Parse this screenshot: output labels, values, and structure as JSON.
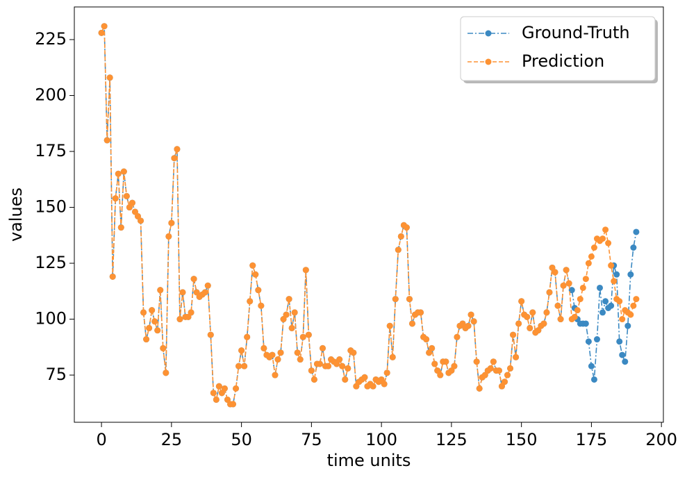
{
  "chart_data": {
    "type": "line",
    "xlabel": "time units",
    "ylabel": "values",
    "x": [
      0,
      1,
      2,
      3,
      4,
      5,
      6,
      7,
      8,
      9,
      10,
      11,
      12,
      13,
      14,
      15,
      16,
      17,
      18,
      19,
      20,
      21,
      22,
      23,
      24,
      25,
      26,
      27,
      28,
      29,
      30,
      31,
      32,
      33,
      34,
      35,
      36,
      37,
      38,
      39,
      40,
      41,
      42,
      43,
      44,
      45,
      46,
      47,
      48,
      49,
      50,
      51,
      52,
      53,
      54,
      55,
      56,
      57,
      58,
      59,
      60,
      61,
      62,
      63,
      64,
      65,
      66,
      67,
      68,
      69,
      70,
      71,
      72,
      73,
      74,
      75,
      76,
      77,
      78,
      79,
      80,
      81,
      82,
      83,
      84,
      85,
      86,
      87,
      88,
      89,
      90,
      91,
      92,
      93,
      94,
      95,
      96,
      97,
      98,
      99,
      100,
      101,
      102,
      103,
      104,
      105,
      106,
      107,
      108,
      109,
      110,
      111,
      112,
      113,
      114,
      115,
      116,
      117,
      118,
      119,
      120,
      121,
      122,
      123,
      124,
      125,
      126,
      127,
      128,
      129,
      130,
      131,
      132,
      133,
      134,
      135,
      136,
      137,
      138,
      139,
      140,
      141,
      142,
      143,
      144,
      145,
      146,
      147,
      148,
      149,
      150,
      151,
      152,
      153,
      154,
      155,
      156,
      157,
      158,
      159,
      160,
      161,
      162,
      163,
      164,
      165,
      166,
      167,
      168,
      169,
      170,
      171,
      172,
      173,
      174,
      175,
      176,
      177,
      178,
      179,
      180,
      181,
      182,
      183,
      184,
      185,
      186,
      187,
      188,
      189,
      190,
      191
    ],
    "series": [
      {
        "name": "Ground-Truth",
        "color": "#3b89c2",
        "linestyle": "-.",
        "values": [
          228,
          231,
          180,
          208,
          119,
          154,
          165,
          141,
          166,
          155,
          150,
          152,
          148,
          146,
          144,
          103,
          91,
          96,
          104,
          99,
          95,
          113,
          87,
          76,
          137,
          143,
          172,
          176,
          100,
          112,
          101,
          101,
          103,
          118,
          112,
          110,
          111,
          112,
          115,
          93,
          67,
          64,
          70,
          67,
          69,
          64,
          62,
          62,
          69,
          79,
          86,
          79,
          92,
          108,
          124,
          120,
          113,
          106,
          87,
          84,
          83,
          84,
          75,
          82,
          85,
          100,
          102,
          109,
          96,
          103,
          85,
          82,
          92,
          122,
          93,
          77,
          73,
          80,
          80,
          87,
          79,
          79,
          82,
          81,
          80,
          82,
          79,
          73,
          78,
          86,
          85,
          70,
          72,
          73,
          74,
          70,
          71,
          70,
          73,
          72,
          73,
          71,
          76,
          97,
          83,
          109,
          131,
          137,
          142,
          141,
          109,
          98,
          102,
          103,
          103,
          92,
          91,
          85,
          87,
          80,
          77,
          75,
          81,
          81,
          76,
          77,
          79,
          92,
          97,
          98,
          96,
          97,
          102,
          99,
          81,
          69,
          74,
          75,
          77,
          78,
          81,
          77,
          77,
          70,
          72,
          75,
          78,
          93,
          83,
          98,
          108,
          102,
          101,
          96,
          103,
          94,
          95,
          97,
          98,
          103,
          112,
          123,
          121,
          106,
          100,
          115,
          122,
          116,
          113,
          105,
          100,
          98,
          98,
          98,
          90,
          79,
          73,
          91,
          114,
          103,
          108,
          105,
          106,
          124,
          120,
          90,
          84,
          81,
          97,
          120,
          132,
          139
        ]
      },
      {
        "name": "Prediction",
        "color": "#fd9233",
        "linestyle": "--",
        "values": [
          228,
          231,
          180,
          208,
          119,
          154,
          165,
          141,
          166,
          155,
          150,
          152,
          148,
          146,
          144,
          103,
          91,
          96,
          104,
          99,
          95,
          113,
          87,
          76,
          137,
          143,
          172,
          176,
          100,
          112,
          101,
          101,
          103,
          118,
          112,
          110,
          111,
          112,
          115,
          93,
          67,
          64,
          70,
          67,
          69,
          64,
          62,
          62,
          69,
          79,
          86,
          79,
          92,
          108,
          124,
          120,
          113,
          106,
          87,
          84,
          83,
          84,
          75,
          82,
          85,
          100,
          102,
          109,
          96,
          103,
          85,
          82,
          92,
          122,
          93,
          77,
          73,
          80,
          80,
          87,
          79,
          79,
          82,
          81,
          80,
          82,
          79,
          73,
          78,
          86,
          85,
          70,
          72,
          73,
          74,
          70,
          71,
          70,
          73,
          72,
          73,
          71,
          76,
          97,
          83,
          109,
          131,
          137,
          142,
          141,
          109,
          98,
          102,
          103,
          103,
          92,
          91,
          85,
          87,
          80,
          77,
          75,
          81,
          81,
          76,
          77,
          79,
          92,
          97,
          98,
          96,
          97,
          102,
          99,
          81,
          69,
          74,
          75,
          77,
          78,
          81,
          77,
          77,
          70,
          72,
          75,
          78,
          93,
          83,
          98,
          108,
          102,
          101,
          96,
          103,
          94,
          95,
          97,
          98,
          103,
          112,
          123,
          121,
          106,
          100,
          115,
          122,
          116,
          100,
          101,
          104,
          109,
          114,
          118,
          125,
          128,
          132,
          136,
          135,
          136,
          140,
          134,
          124,
          117,
          109,
          108,
          100,
          104,
          103,
          102,
          106,
          109
        ]
      }
    ],
    "xlim": [
      -9.7,
      200.7
    ],
    "ylim": [
      53.9,
      239.6
    ],
    "xticks": [
      0,
      25,
      50,
      75,
      100,
      125,
      150,
      175,
      200
    ],
    "yticks": [
      75,
      100,
      125,
      150,
      175,
      200,
      225
    ],
    "legend": "upper right"
  }
}
